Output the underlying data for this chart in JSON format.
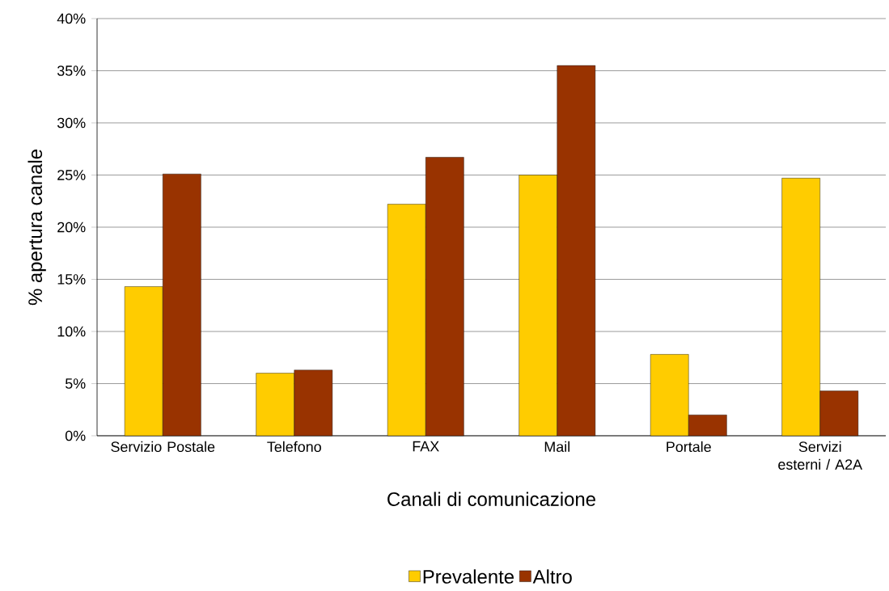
{
  "chart_data": {
    "type": "bar",
    "xlabel": "Canali di comunicazione",
    "ylabel": "% apertura canale",
    "categories": [
      "Servizio Postale",
      "Telefono",
      "FAX",
      "Mail",
      "Portale",
      "Servizi esterni / A2A"
    ],
    "series": [
      {
        "name": "Prevalente",
        "color": "#ffcc00",
        "values": [
          14.3,
          6.0,
          22.2,
          25.0,
          7.8,
          24.7
        ]
      },
      {
        "name": "Altro",
        "color": "#993300",
        "values": [
          25.1,
          6.3,
          26.7,
          35.5,
          2.0,
          4.3
        ]
      }
    ],
    "ylim": [
      0,
      40
    ],
    "yticks": [
      {
        "value": 0,
        "label": "0%"
      },
      {
        "value": 5,
        "label": "5%"
      },
      {
        "value": 10,
        "label": "10%"
      },
      {
        "value": 15,
        "label": "15%"
      },
      {
        "value": 20,
        "label": "20%"
      },
      {
        "value": 25,
        "label": "25%"
      },
      {
        "value": 30,
        "label": "30%"
      },
      {
        "value": 35,
        "label": "35%"
      },
      {
        "value": 40,
        "label": "40%"
      }
    ],
    "grid": "y",
    "legend": "bottom"
  }
}
